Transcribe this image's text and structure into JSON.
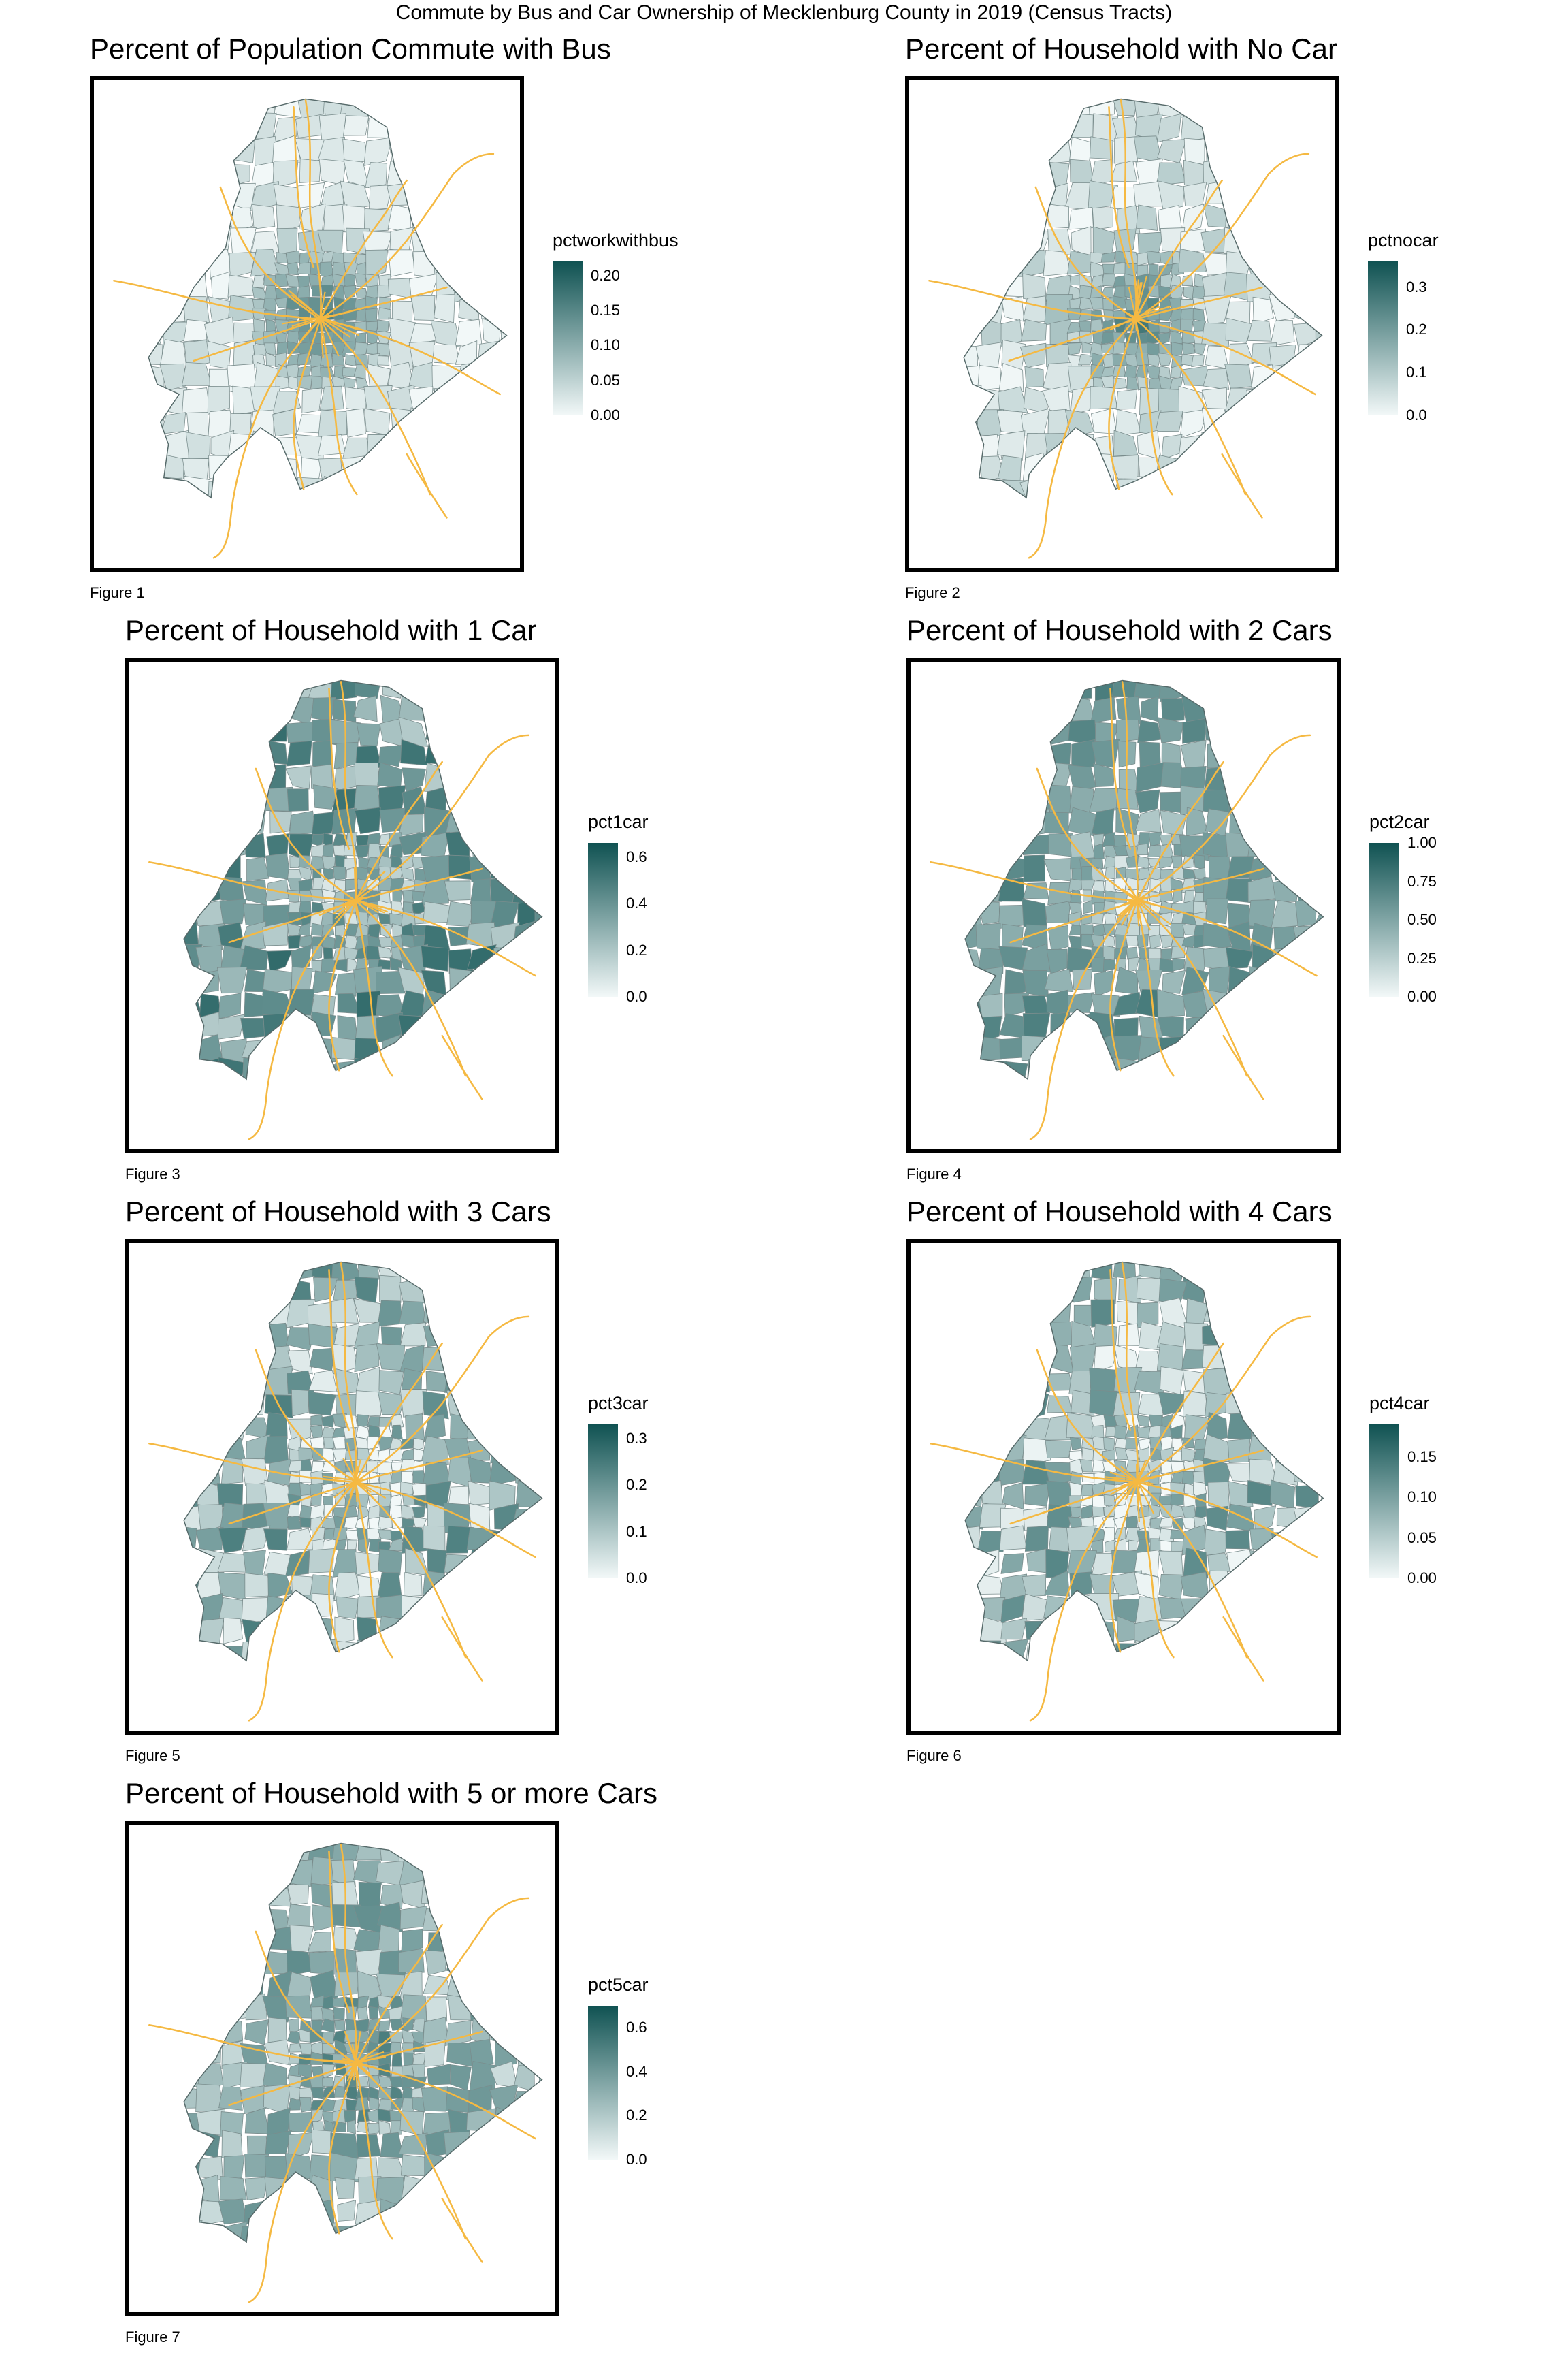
{
  "title": "Commute by Bus and Car Ownership of Mecklenburg County in 2019 (Census Tracts)",
  "colors": {
    "low": "#f2f8f8",
    "high": "#0f5252",
    "roads": "#f5b942",
    "tract_border": "#7a8d8d"
  },
  "panels": [
    {
      "title": "Percent of Population Commute with Bus",
      "caption": "Figure 1",
      "legend": {
        "title": "pctworkwithbus",
        "ticks": [
          "0.00",
          "0.05",
          "0.10",
          "0.15",
          "0.20"
        ],
        "max": 0.22
      }
    },
    {
      "title": "Percent of Household with No Car",
      "caption": "Figure 2",
      "legend": {
        "title": "pctnocar",
        "ticks": [
          "0.0",
          "0.1",
          "0.2",
          "0.3"
        ],
        "max": 0.36
      }
    },
    {
      "title": "Percent of Household with 1 Car",
      "caption": "Figure 3",
      "legend": {
        "title": "pct1car",
        "ticks": [
          "0.0",
          "0.2",
          "0.4",
          "0.6"
        ],
        "max": 0.66
      }
    },
    {
      "title": "Percent of Household with 2 Cars",
      "caption": "Figure 4",
      "legend": {
        "title": "pct2car",
        "ticks": [
          "0.00",
          "0.25",
          "0.50",
          "0.75",
          "1.00"
        ],
        "max": 1.0
      }
    },
    {
      "title": "Percent of Household with 3 Cars",
      "caption": "Figure 5",
      "legend": {
        "title": "pct3car",
        "ticks": [
          "0.0",
          "0.1",
          "0.2",
          "0.3"
        ],
        "max": 0.33
      }
    },
    {
      "title": "Percent of Household with 4 Cars",
      "caption": "Figure 6",
      "legend": {
        "title": "pct4car",
        "ticks": [
          "0.00",
          "0.05",
          "0.10",
          "0.15"
        ],
        "max": 0.19
      }
    },
    {
      "title": "Percent of Household with 5 or more Cars",
      "caption": "Figure 7",
      "legend": {
        "title": "pct5car",
        "ticks": [
          "0.0",
          "0.2",
          "0.4",
          "0.6"
        ],
        "max": 0.7
      }
    }
  ]
}
